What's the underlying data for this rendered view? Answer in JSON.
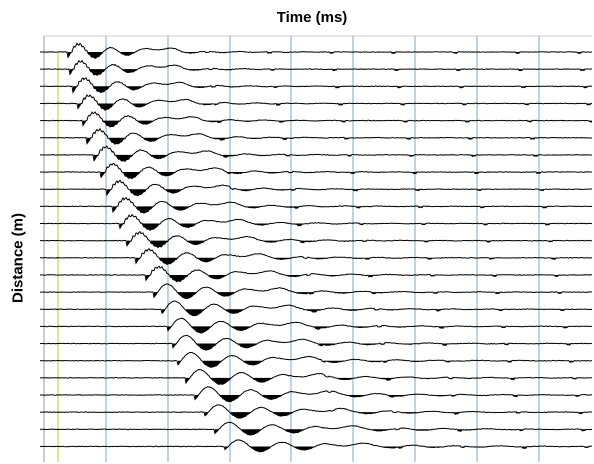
{
  "chart_data": {
    "type": "seismic-wiggle",
    "xlabel": "Time (ms)",
    "ylabel": "Distance (m)",
    "trace_count": 24,
    "grid": true,
    "colors": {
      "trace": "#000000",
      "fill": "#000000",
      "grid": "#7fa7c9",
      "gridBorder": "#cfcfcf",
      "trigger": "#c8c832"
    },
    "first_break_arrival": [
      0.44,
      0.47,
      0.53,
      0.6,
      0.68,
      0.76,
      0.87,
      0.98,
      1.08,
      1.18,
      1.28,
      1.4,
      1.55,
      1.71,
      1.84,
      1.96,
      2.06,
      2.14,
      2.22,
      2.36,
      2.5,
      2.66,
      2.83,
      2.98
    ],
    "trace_amplitude": [
      1.0,
      1.0,
      1.0,
      1.0,
      1.0,
      1.0,
      1.0,
      1.0,
      1.0,
      1.0,
      1.0,
      1.0,
      1.0,
      1.0,
      1.0,
      1.0,
      1.0,
      1.0,
      1.0,
      1.0,
      1.0,
      0.9,
      0.85,
      0.8
    ]
  }
}
